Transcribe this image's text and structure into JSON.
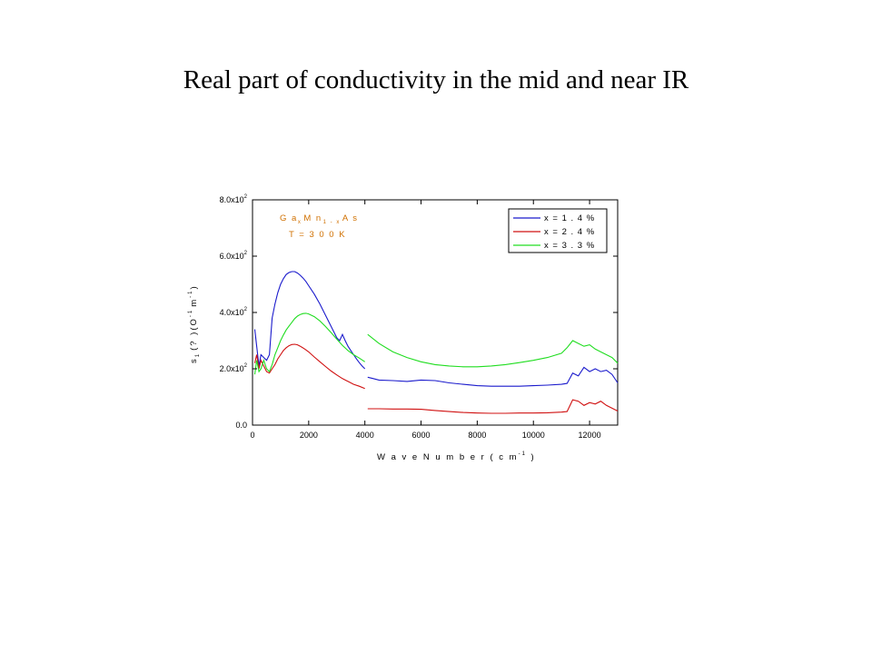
{
  "slide": {
    "title": "Real part of conductivity in the mid and near IR"
  },
  "chart_data": {
    "type": "line",
    "title": "",
    "xlabel": "W a v e N u m b e r ( c m -1 )",
    "ylabel": "s 1(? )(O -1 m -1 )",
    "xlabel_main": "W a v e  N u m b e r  ( c m",
    "xlabel_sup": "-1",
    "xlabel_close": " )",
    "ylabel_parts": {
      "s": "s",
      "sub": "1",
      "mid": "(? )(O",
      "sup1": "-1",
      "m": "m",
      "sup2": "-1",
      "close": ")"
    },
    "xlim": [
      0,
      13000
    ],
    "ylim": [
      0,
      800
    ],
    "x_ticks": [
      0,
      2000,
      4000,
      6000,
      8000,
      10000,
      12000
    ],
    "x_tick_labels": [
      "0",
      "2000",
      "4000",
      "6000",
      "8000",
      "10000",
      "12000"
    ],
    "y_ticks": [
      0,
      200,
      400,
      600,
      800
    ],
    "y_tick_labels": [
      {
        "base": "0.0",
        "sup": ""
      },
      {
        "base": "2.0x10",
        "sup": "2"
      },
      {
        "base": "4.0x10",
        "sup": "2"
      },
      {
        "base": "6.0x10",
        "sup": "2"
      },
      {
        "base": "8.0x10",
        "sup": "2"
      }
    ],
    "annotations": {
      "line1": {
        "a": "G a",
        "s1": "x",
        "b": "M n",
        "s2": "1 - x",
        "c": "A s"
      },
      "line2": "T = 3 0 0 K"
    },
    "legend": {
      "position": "top-right"
    },
    "grid": false,
    "series": [
      {
        "name": "x = 1 . 4 %",
        "color": "#1a1acc",
        "x": [
          80,
          150,
          230,
          300,
          400,
          500,
          600,
          700,
          800,
          900,
          1000,
          1100,
          1200,
          1300,
          1400,
          1500,
          1600,
          1700,
          1800,
          1900,
          2000,
          2200,
          2400,
          2600,
          2800,
          3000,
          3100,
          3200,
          3300,
          3400,
          3500,
          3600,
          3700,
          3800,
          3900,
          4000,
          4050,
          4100,
          4300,
          4500,
          5000,
          5500,
          6000,
          6500,
          7000,
          7500,
          8000,
          8500,
          9000,
          9500,
          10000,
          10500,
          11000,
          11200,
          11400,
          11600,
          11800,
          12000,
          12200,
          12400,
          12600,
          12800,
          13000
        ],
        "y": [
          340,
          280,
          210,
          250,
          240,
          230,
          250,
          380,
          430,
          470,
          500,
          520,
          535,
          542,
          545,
          545,
          540,
          532,
          522,
          510,
          495,
          465,
          430,
          390,
          350,
          310,
          300,
          322,
          300,
          280,
          265,
          250,
          235,
          222,
          210,
          200,
          null,
          170,
          165,
          160,
          158,
          155,
          160,
          158,
          150,
          145,
          140,
          138,
          138,
          138,
          140,
          142,
          145,
          148,
          185,
          175,
          205,
          190,
          200,
          190,
          195,
          180,
          150
        ]
      },
      {
        "name": "x = 2 . 4 %",
        "color": "#d01010",
        "x": [
          80,
          150,
          230,
          300,
          400,
          500,
          600,
          700,
          800,
          900,
          1000,
          1100,
          1200,
          1300,
          1400,
          1500,
          1600,
          1700,
          1800,
          1900,
          2000,
          2200,
          2400,
          2600,
          2800,
          3000,
          3200,
          3400,
          3600,
          3800,
          4000,
          4050,
          4100,
          4500,
          5000,
          5500,
          6000,
          6500,
          7000,
          7500,
          8000,
          8500,
          9000,
          9500,
          10000,
          10500,
          11000,
          11200,
          11400,
          11600,
          11800,
          12000,
          12200,
          12400,
          12600,
          12800,
          13000
        ],
        "y": [
          220,
          250,
          200,
          230,
          210,
          190,
          185,
          200,
          215,
          235,
          250,
          265,
          275,
          282,
          286,
          287,
          285,
          280,
          274,
          267,
          260,
          242,
          225,
          208,
          192,
          178,
          165,
          155,
          145,
          138,
          130,
          null,
          58,
          58,
          57,
          57,
          56,
          52,
          48,
          45,
          43,
          42,
          42,
          43,
          43,
          44,
          46,
          48,
          90,
          85,
          70,
          80,
          75,
          85,
          70,
          60,
          50
        ]
      },
      {
        "name": "x = 3 . 3 %",
        "color": "#20dd20",
        "x": [
          80,
          150,
          230,
          300,
          400,
          500,
          600,
          700,
          800,
          900,
          1000,
          1100,
          1200,
          1300,
          1400,
          1500,
          1600,
          1700,
          1800,
          1900,
          2000,
          2200,
          2400,
          2600,
          2800,
          3000,
          3200,
          3400,
          3600,
          3800,
          4000,
          4050,
          4100,
          4500,
          5000,
          5500,
          6000,
          6500,
          7000,
          7500,
          8000,
          8500,
          9000,
          9500,
          10000,
          10500,
          11000,
          11200,
          11400,
          11600,
          11800,
          12000,
          12200,
          12400,
          12600,
          12800,
          13000
        ],
        "y": [
          180,
          230,
          190,
          200,
          230,
          200,
          190,
          215,
          250,
          275,
          300,
          320,
          338,
          352,
          365,
          378,
          387,
          393,
          396,
          397,
          395,
          385,
          370,
          350,
          328,
          305,
          283,
          265,
          250,
          238,
          225,
          null,
          322,
          290,
          260,
          240,
          225,
          215,
          210,
          207,
          207,
          210,
          215,
          222,
          230,
          240,
          255,
          275,
          300,
          290,
          280,
          285,
          270,
          260,
          250,
          240,
          220
        ]
      }
    ]
  }
}
